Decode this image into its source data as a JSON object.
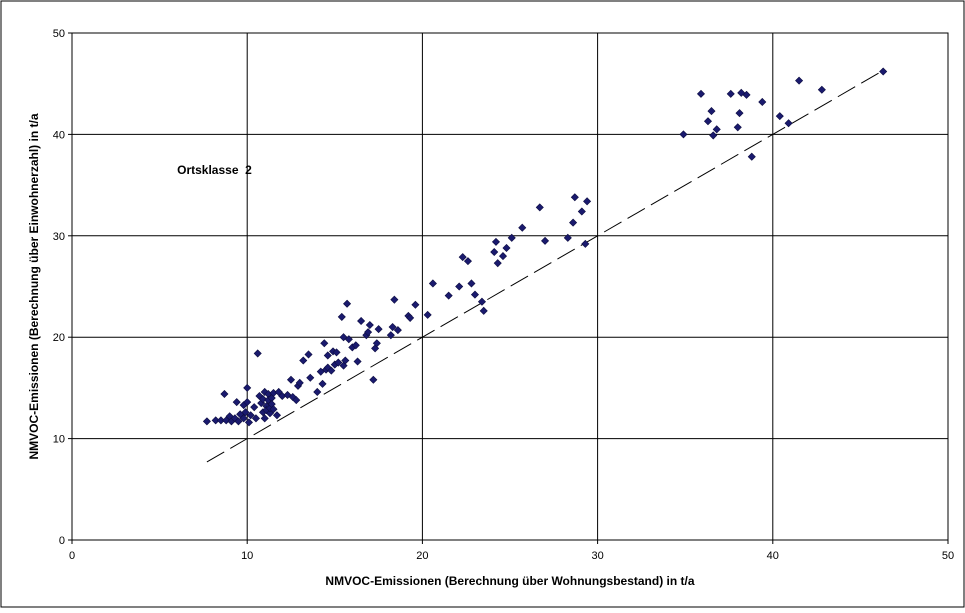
{
  "chart_data": {
    "type": "scatter",
    "title": "",
    "xlabel": "NMVOC-Emissionen (Berechnung über Wohnungsbestand) in t/a",
    "ylabel": "NMVOC-Emissionen (Berechnung über Einwohnerzahl) in t/a",
    "xlim": [
      0,
      50
    ],
    "ylim": [
      0,
      50
    ],
    "xticks": [
      0,
      10,
      20,
      30,
      40,
      50
    ],
    "yticks": [
      0,
      10,
      20,
      30,
      40,
      50
    ],
    "grid": true,
    "annotation": "Ortsklasse  2",
    "colors": {
      "points": "#1a1a6e",
      "reference_line": "#000000",
      "grid": "#000000"
    },
    "reference_line": {
      "style": "dashed",
      "from": [
        7.7,
        7.7
      ],
      "to": [
        46.3,
        46.3
      ]
    },
    "points": [
      [
        7.7,
        11.7
      ],
      [
        8.2,
        11.8
      ],
      [
        8.5,
        11.8
      ],
      [
        8.8,
        11.8
      ],
      [
        8.7,
        14.4
      ],
      [
        9.0,
        12.2
      ],
      [
        9.1,
        11.7
      ],
      [
        9.3,
        12.0
      ],
      [
        9.4,
        13.6
      ],
      [
        9.5,
        11.7
      ],
      [
        9.6,
        12.4
      ],
      [
        9.8,
        13.3
      ],
      [
        9.8,
        12.0
      ],
      [
        9.9,
        12.6
      ],
      [
        10.0,
        15.0
      ],
      [
        10.0,
        13.6
      ],
      [
        10.1,
        11.6
      ],
      [
        10.2,
        12.3
      ],
      [
        10.4,
        13.1
      ],
      [
        10.5,
        12.0
      ],
      [
        10.6,
        18.4
      ],
      [
        10.7,
        14.2
      ],
      [
        10.8,
        13.5
      ],
      [
        10.9,
        12.6
      ],
      [
        10.9,
        13.9
      ],
      [
        11.0,
        12.0
      ],
      [
        11.0,
        14.6
      ],
      [
        11.1,
        13.2
      ],
      [
        11.1,
        12.8
      ],
      [
        11.2,
        14.4
      ],
      [
        11.2,
        13.8
      ],
      [
        11.3,
        12.5
      ],
      [
        11.3,
        13.0
      ],
      [
        11.4,
        14.0
      ],
      [
        11.4,
        13.4
      ],
      [
        11.5,
        12.9
      ],
      [
        11.5,
        14.5
      ],
      [
        11.7,
        12.3
      ],
      [
        11.8,
        14.6
      ],
      [
        12.0,
        14.2
      ],
      [
        12.3,
        14.3
      ],
      [
        12.5,
        15.8
      ],
      [
        12.6,
        14.1
      ],
      [
        12.8,
        13.8
      ],
      [
        12.9,
        15.2
      ],
      [
        13.0,
        15.5
      ],
      [
        13.2,
        17.7
      ],
      [
        13.5,
        18.3
      ],
      [
        13.6,
        16.0
      ],
      [
        14.0,
        14.6
      ],
      [
        14.2,
        16.6
      ],
      [
        14.3,
        15.4
      ],
      [
        14.4,
        19.4
      ],
      [
        14.5,
        16.8
      ],
      [
        14.6,
        17.0
      ],
      [
        14.6,
        18.2
      ],
      [
        14.8,
        16.7
      ],
      [
        14.9,
        18.6
      ],
      [
        15.0,
        17.3
      ],
      [
        15.1,
        18.5
      ],
      [
        15.2,
        17.5
      ],
      [
        15.4,
        22.0
      ],
      [
        15.5,
        20.0
      ],
      [
        15.5,
        17.2
      ],
      [
        15.6,
        17.7
      ],
      [
        15.7,
        23.3
      ],
      [
        15.8,
        19.8
      ],
      [
        16.0,
        19.0
      ],
      [
        16.2,
        19.2
      ],
      [
        16.3,
        17.6
      ],
      [
        16.5,
        21.6
      ],
      [
        16.8,
        20.2
      ],
      [
        16.9,
        20.5
      ],
      [
        17.0,
        21.2
      ],
      [
        17.2,
        15.8
      ],
      [
        17.3,
        18.9
      ],
      [
        17.4,
        19.4
      ],
      [
        17.5,
        20.8
      ],
      [
        18.2,
        20.2
      ],
      [
        18.3,
        21.0
      ],
      [
        18.4,
        23.7
      ],
      [
        18.6,
        20.7
      ],
      [
        19.2,
        22.1
      ],
      [
        19.3,
        21.9
      ],
      [
        19.6,
        23.2
      ],
      [
        20.3,
        22.2
      ],
      [
        20.6,
        25.3
      ],
      [
        21.5,
        24.1
      ],
      [
        22.1,
        25.0
      ],
      [
        22.3,
        27.9
      ],
      [
        22.6,
        27.5
      ],
      [
        22.8,
        25.3
      ],
      [
        23.0,
        24.2
      ],
      [
        23.4,
        23.5
      ],
      [
        23.5,
        22.6
      ],
      [
        24.1,
        28.4
      ],
      [
        24.2,
        29.4
      ],
      [
        24.3,
        27.3
      ],
      [
        24.6,
        28.0
      ],
      [
        24.8,
        28.8
      ],
      [
        25.1,
        29.8
      ],
      [
        25.7,
        30.8
      ],
      [
        26.7,
        32.8
      ],
      [
        27.0,
        29.5
      ],
      [
        28.3,
        29.8
      ],
      [
        28.6,
        31.3
      ],
      [
        28.7,
        33.8
      ],
      [
        29.1,
        32.4
      ],
      [
        29.3,
        29.2
      ],
      [
        29.4,
        33.4
      ],
      [
        34.9,
        40.0
      ],
      [
        35.9,
        44.0
      ],
      [
        36.3,
        41.3
      ],
      [
        36.5,
        42.3
      ],
      [
        36.6,
        39.9
      ],
      [
        36.8,
        40.5
      ],
      [
        37.6,
        44.0
      ],
      [
        38.0,
        40.7
      ],
      [
        38.1,
        42.1
      ],
      [
        38.2,
        44.1
      ],
      [
        38.5,
        43.9
      ],
      [
        38.8,
        37.8
      ],
      [
        39.4,
        43.2
      ],
      [
        40.4,
        41.8
      ],
      [
        40.9,
        41.1
      ],
      [
        41.5,
        45.3
      ],
      [
        42.8,
        44.4
      ],
      [
        46.3,
        46.2
      ]
    ]
  }
}
